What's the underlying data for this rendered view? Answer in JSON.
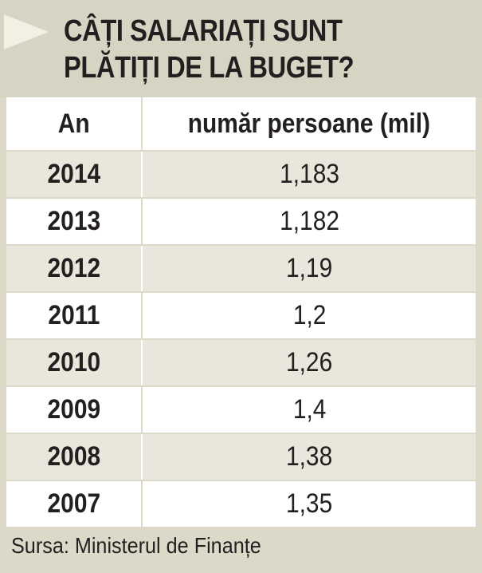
{
  "title": {
    "line1": "CÂȚI SALARIAȚI SUNT",
    "line2": "PLĂTIȚI DE LA BUGET?"
  },
  "source": "Sursa: Ministerul de Finanțe",
  "colors": {
    "frame": "#ddd9c8",
    "row_shaded": "#e9e7dc",
    "row_white": "#ffffff",
    "text": "#231f20"
  },
  "chart_data": {
    "type": "table",
    "title": "CÂȚI SALARIAȚI SUNT PLĂTIȚI DE LA BUGET?",
    "columns": [
      "An",
      "număr persoane (mil)"
    ],
    "rows": [
      {
        "year": "2014",
        "value": "1,183"
      },
      {
        "year": "2013",
        "value": "1,182"
      },
      {
        "year": "2012",
        "value": "1,19"
      },
      {
        "year": "2011",
        "value": "1,2"
      },
      {
        "year": "2010",
        "value": "1,26"
      },
      {
        "year": "2009",
        "value": "1,4"
      },
      {
        "year": "2008",
        "value": "1,38"
      },
      {
        "year": "2007",
        "value": "1,35"
      }
    ],
    "source": "Sursa: Ministerul de Finanțe"
  }
}
